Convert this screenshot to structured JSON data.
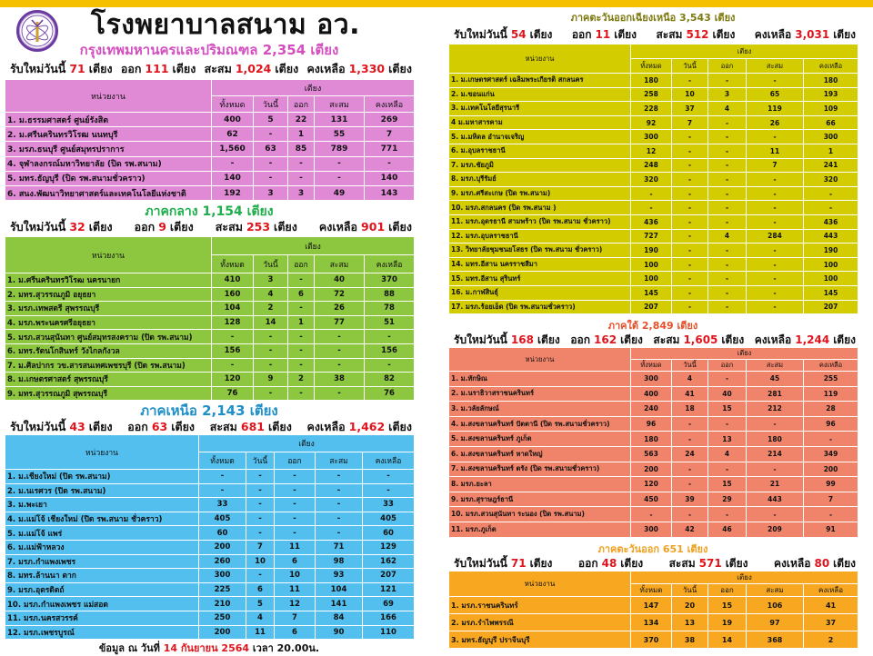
{
  "title": "โรงพยาบาลสนาม อว.",
  "labels": {
    "new": "รับใหม่วันนี้",
    "out": "ออก",
    "cum": "สะสม",
    "remain": "คงเหลือ",
    "unit": "เตียง",
    "org": "หน่วยงาน",
    "beds": "เตียง",
    "cols": [
      "ทั้งหมด",
      "วันนี้",
      "ออก",
      "สะสม",
      "คงเหลือ"
    ]
  },
  "footer": {
    "prefix": "ข้อมูล ณ วันที่",
    "date": "14 กันยายน 2564",
    "time": "เวลา 20.00น."
  },
  "regions": [
    {
      "key": "bangkok",
      "title": "กรุงเทพมหานครและปริมณฑล  2,354 เตียง",
      "title_color": "#d34fbf",
      "table_color": "#e08ad6",
      "stats": {
        "new": "71",
        "out": "111",
        "cum": "1,024",
        "remain": "1,330"
      },
      "rows": [
        [
          "1. ม.ธรรมศาสตร์ ศูนย์รังสิต",
          "400",
          "5",
          "22",
          "131",
          "269"
        ],
        [
          "2. ม.ศรีนครินทรวิโรฒ นนทบุรี",
          "62",
          "-",
          "1",
          "55",
          "7"
        ],
        [
          "3. มรภ.ธนบุรี ศูนย์สมุทรปราการ",
          "1,560",
          "63",
          "85",
          "789",
          "771"
        ],
        [
          "4. จุฬาลงกรณ์มหาวิทยาลัย  (ปิด รพ.สนาม)",
          "-",
          "-",
          "-",
          "-",
          "-"
        ],
        [
          "5. มทร.ธัญบุรี (ปิด รพ.สนามชั่วคราว)",
          "140",
          "-",
          "-",
          "-",
          "140"
        ],
        [
          "6. สนง.พัฒนาวิทยาศาสตร์และเทคโนโลยีแห่งชาติ",
          "192",
          "3",
          "3",
          "49",
          "143"
        ]
      ]
    },
    {
      "key": "central",
      "title": "ภาคกลาง  1,154 เตียง",
      "title_color": "#1fae4b",
      "table_color": "#8dc63f",
      "stats": {
        "new": "32",
        "out": "9",
        "cum": "253",
        "remain": "901"
      },
      "rows": [
        [
          "1. ม.ศรีนครินทรวิโรฒ นครนายก",
          "410",
          "3",
          "-",
          "40",
          "370"
        ],
        [
          "2. มทร.สุวรรณภูมิ อยุธยา",
          "160",
          "4",
          "6",
          "72",
          "88"
        ],
        [
          "3. มรภ.เทพสตรี สุพรรณบุรี",
          "104",
          "2",
          "-",
          "26",
          "78"
        ],
        [
          "4. มรภ.พระนครศรีอยุธยา",
          "128",
          "14",
          "1",
          "77",
          "51"
        ],
        [
          "5. มรภ.สวนสุนันทา ศูนย์สมุทรสงคราม  (ปิด รพ.สนาม)",
          "-",
          "-",
          "-",
          "-",
          "-"
        ],
        [
          "6. มทร.รัตนโกสินทร์ วังไกลกังวล",
          "156",
          "-",
          "-",
          "-",
          "156"
        ],
        [
          "7. ม.ศิลปากร วข.สารสนเทศเพชรบุรี (ปิด รพ.สนาม)",
          "-",
          "-",
          "-",
          "-",
          "-"
        ],
        [
          "8. ม.เกษตรศาสตร์ สุพรรณบุรี",
          "120",
          "9",
          "2",
          "38",
          "82"
        ],
        [
          "9. มทร.สุวรรณภูมิ  สุพรรณบุรี",
          "76",
          "-",
          "-",
          "-",
          "76"
        ]
      ]
    },
    {
      "key": "north",
      "title": "ภาคเหนือ  2,143 เตียง",
      "title_color": "#1e8fc8",
      "table_color": "#52bfee",
      "stats": {
        "new": "43",
        "out": "63",
        "cum": "681",
        "remain": "1,462"
      },
      "rows": [
        [
          "1. ม.เชียงใหม่  (ปิด รพ.สนาม)",
          "-",
          "-",
          "-",
          "-",
          "-"
        ],
        [
          "2. ม.นเรศวร (ปิด รพ.สนาม)",
          "-",
          "-",
          "-",
          "-",
          "-"
        ],
        [
          "3. ม.พะเยา",
          "33",
          "-",
          "-",
          "-",
          "33"
        ],
        [
          "4. ม.แม่โจ้ เชียงใหม่ (ปิด รพ.สนาม ชั่วคราว)",
          "405",
          "-",
          "-",
          "-",
          "405"
        ],
        [
          "5. ม.แม่โจ้ แพร่",
          "60",
          "-",
          "-",
          "-",
          "60"
        ],
        [
          "6. ม.แม่ฟ้าหลวง",
          "200",
          "7",
          "11",
          "71",
          "129"
        ],
        [
          "7. มรภ.กำแพงเพชร",
          "260",
          "10",
          "6",
          "98",
          "162"
        ],
        [
          "8. มทร.ล้านนา ตาก",
          "300",
          "-",
          "10",
          "93",
          "207"
        ],
        [
          "9. มรภ.อุตรดิตถ์",
          "225",
          "6",
          "11",
          "104",
          "121"
        ],
        [
          "10. มรภ.กำแพงเพชร แม่สอด",
          "210",
          "5",
          "12",
          "141",
          "69"
        ],
        [
          "11. มรภ.นครสวรรค์",
          "250",
          "4",
          "7",
          "84",
          "166"
        ],
        [
          "12. มรภ.เพชรบูรณ์",
          "200",
          "11",
          "6",
          "90",
          "110"
        ]
      ]
    },
    {
      "key": "northeast",
      "title": "ภาคตะวันออกเฉียงเหนือ  3,543 เตียง",
      "title_color": "#7d7a10",
      "table_color": "#d2cc00",
      "stats": {
        "new": "54",
        "out": "11",
        "cum": "512",
        "remain": "3,031"
      },
      "rows": [
        [
          "1. ม.เกษตรศาสตร์ เฉลิมพระเกียรติ สกลนคร",
          "180",
          "-",
          "-",
          "-",
          "180"
        ],
        [
          "2. ม.ขอนแก่น",
          "258",
          "10",
          "3",
          "65",
          "193"
        ],
        [
          "3. ม.เทคโนโลยีสุรนารี",
          "228",
          "37",
          "4",
          "119",
          "109"
        ],
        [
          "4 ม.มหาสารคาม",
          "92",
          "7",
          "-",
          "26",
          "66"
        ],
        [
          "5. ม.มหิดล อำนาจเจริญ",
          "300",
          "-",
          "-",
          "-",
          "300"
        ],
        [
          "6. ม.อุบลราชธานี",
          "12",
          "-",
          "-",
          "11",
          "1"
        ],
        [
          "7. มรภ.ชัยภูมิ",
          "248",
          "-",
          "-",
          "7",
          "241"
        ],
        [
          "8. มรภ.บุรีรัมย์",
          "320",
          "-",
          "-",
          "-",
          "320"
        ],
        [
          "9. มรภ.ศรีสะเกษ  (ปิด รพ.สนาม)",
          "-",
          "-",
          "-",
          "-",
          "-"
        ],
        [
          "10. มรภ.สกลนคร (ปิด รพ.สนาม )",
          "-",
          "-",
          "-",
          "-",
          "-"
        ],
        [
          "11. มรภ.อุดรธานี สามพร้าว (ปิด รพ.สนาม ชั่วคราว)",
          "436",
          "-",
          "-",
          "-",
          "436"
        ],
        [
          "12. มรภ.อุบลราชธานี",
          "727",
          "-",
          "4",
          "284",
          "443"
        ],
        [
          "13. วิทยาลัยชุมชนยโสธร (ปิด รพ.สนาม ชั่วคราว)",
          "190",
          "-",
          "-",
          "-",
          "190"
        ],
        [
          "14. มทร.อีสาน นครราชสีมา",
          "100",
          "-",
          "-",
          "-",
          "100"
        ],
        [
          "15. มทร.อีสาน สุรินทร์",
          "100",
          "-",
          "-",
          "-",
          "100"
        ],
        [
          "16. ม.กาฬสินธุ์",
          "145",
          "-",
          "-",
          "-",
          "145"
        ],
        [
          "17. มรภ.ร้อยเอ็ด (ปิด รพ.สนามชั่วคราว)",
          "207",
          "-",
          "-",
          "-",
          "207"
        ]
      ]
    },
    {
      "key": "south",
      "title": "ภาคใต้  2,849 เตียง",
      "title_color": "#e5502a",
      "table_color": "#f0846a",
      "stats": {
        "new": "168",
        "out": "162",
        "cum": "1,605",
        "remain": "1,244"
      },
      "rows": [
        [
          "1. ม.ทักษิณ",
          "300",
          "4",
          "-",
          "45",
          "255"
        ],
        [
          "2. ม.นราธิวาสราชนครินทร์",
          "400",
          "41",
          "40",
          "281",
          "119"
        ],
        [
          "3. ม.วลัยลักษณ์",
          "240",
          "18",
          "15",
          "212",
          "28"
        ],
        [
          "4. ม.สงขลานครินทร์ ปัตตานี  (ปิด รพ.สนามชั่วคราว)",
          "96",
          "-",
          "-",
          "-",
          "96"
        ],
        [
          "5. ม.สงขลานครินทร์ ภูเก็ต",
          "180",
          "-",
          "13",
          "180",
          "-"
        ],
        [
          "6. ม.สงขลานครินทร์ หาดใหญ่",
          "563",
          "24",
          "4",
          "214",
          "349"
        ],
        [
          "7. ม.สงขลานครินทร์ ตรัง  (ปิด รพ.สนามชั่วคราว)",
          "200",
          "-",
          "-",
          "-",
          "200"
        ],
        [
          "8. มรภ.ยะลา",
          "120",
          "-",
          "15",
          "21",
          "99"
        ],
        [
          "9. มรภ.สุราษฎร์ธานี",
          "450",
          "39",
          "29",
          "443",
          "7"
        ],
        [
          "10. มรภ.สวนสุนันทา ระนอง (ปิด รพ.สนาม)",
          "-",
          "-",
          "-",
          "-",
          "-"
        ],
        [
          "11. มรภ.ภูเก็ต",
          "300",
          "42",
          "46",
          "209",
          "91"
        ]
      ]
    },
    {
      "key": "east",
      "title": "ภาคตะวันออก 651  เตียง",
      "title_color": "#f0a020",
      "table_color": "#f8a820",
      "stats": {
        "new": "71",
        "out": "48",
        "cum": "571",
        "remain": "80"
      },
      "rows": [
        [
          "1. มรภ.ราชนครินทร์",
          "147",
          "20",
          "15",
          "106",
          "41"
        ],
        [
          "2. มรภ.รำไพพรรณี",
          "134",
          "13",
          "19",
          "97",
          "37"
        ],
        [
          "3. มทร.ธัญบุรี  ปราจีนบุรี",
          "370",
          "38",
          "14",
          "368",
          "2"
        ]
      ]
    }
  ]
}
